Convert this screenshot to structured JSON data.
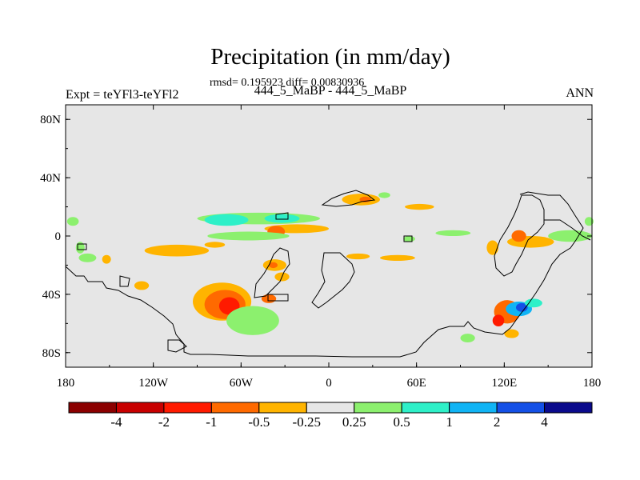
{
  "chart_data": {
    "type": "heatmap",
    "title": "Precipitation (in mm/day)",
    "stats": "rmsd= 0.195923 diff= 0.00830936",
    "subtitle": "444_5_MaBP - 444_5_MaBP",
    "left_string": "Expt = teYFl3-teYFl2",
    "right_string": "ANN",
    "xlim": [
      -180,
      180
    ],
    "ylim": [
      -90,
      90
    ],
    "x_ticks": [
      {
        "value": -180,
        "label": "180"
      },
      {
        "value": -120,
        "label": "120W"
      },
      {
        "value": -60,
        "label": "60W"
      },
      {
        "value": 0,
        "label": "0"
      },
      {
        "value": 60,
        "label": "60E"
      },
      {
        "value": 120,
        "label": "120E"
      },
      {
        "value": 180,
        "label": "180"
      }
    ],
    "y_ticks": [
      {
        "value": 80,
        "label": "80N"
      },
      {
        "value": 40,
        "label": "40N"
      },
      {
        "value": 0,
        "label": "0"
      },
      {
        "value": -40,
        "label": "40S"
      },
      {
        "value": -80,
        "label": "80S"
      }
    ],
    "colorbar": {
      "colors": [
        "#8b0000",
        "#c80000",
        "#ff1a00",
        "#ff6a00",
        "#ffb400",
        "#e6e6e6",
        "#8cf06e",
        "#2ef0c8",
        "#10b4f5",
        "#1450e6",
        "#0a0a8c"
      ],
      "labels": [
        "-4",
        "-2",
        "-1",
        "-0.5",
        "-0.25",
        "0.25",
        "0.5",
        "1",
        "2",
        "4"
      ]
    },
    "anomaly_regions": [
      {
        "lon": -48,
        "lat": 12,
        "rx": 42,
        "ry": 4,
        "level": 6
      },
      {
        "lon": -70,
        "lat": 11,
        "rx": 15,
        "ry": 4,
        "level": 7
      },
      {
        "lon": -32,
        "lat": 12,
        "rx": 12,
        "ry": 3,
        "level": 7
      },
      {
        "lon": -22,
        "lat": 5,
        "rx": 22,
        "ry": 3,
        "level": 4
      },
      {
        "lon": -36,
        "lat": 3,
        "rx": 6,
        "ry": 4,
        "level": 3
      },
      {
        "lon": -55,
        "lat": 0,
        "rx": 28,
        "ry": 3,
        "level": 6
      },
      {
        "lon": -104,
        "lat": -10,
        "rx": 22,
        "ry": 4,
        "level": 4
      },
      {
        "lon": -78,
        "lat": -6,
        "rx": 7,
        "ry": 2,
        "level": 4
      },
      {
        "lon": -37,
        "lat": -20,
        "rx": 8,
        "ry": 4,
        "level": 4
      },
      {
        "lon": -38,
        "lat": -20,
        "rx": 3,
        "ry": 2,
        "level": 3
      },
      {
        "lon": -32,
        "lat": -28,
        "rx": 5,
        "ry": 3,
        "level": 4
      },
      {
        "lon": -73,
        "lat": -45,
        "rx": 20,
        "ry": 13,
        "level": 4
      },
      {
        "lon": -71,
        "lat": -47,
        "rx": 14,
        "ry": 10,
        "level": 3
      },
      {
        "lon": -68,
        "lat": -48,
        "rx": 7,
        "ry": 6,
        "level": 2
      },
      {
        "lon": -52,
        "lat": -58,
        "rx": 18,
        "ry": 10,
        "level": 6
      },
      {
        "lon": -41,
        "lat": -43,
        "rx": 5,
        "ry": 3,
        "level": 3
      },
      {
        "lon": -128,
        "lat": -34,
        "rx": 5,
        "ry": 3,
        "level": 4
      },
      {
        "lon": -152,
        "lat": -16,
        "rx": 3,
        "ry": 3,
        "level": 4
      },
      {
        "lon": 22,
        "lat": 25,
        "rx": 13,
        "ry": 4,
        "level": 4
      },
      {
        "lon": 25,
        "lat": 25,
        "rx": 4,
        "ry": 2,
        "level": 3
      },
      {
        "lon": 62,
        "lat": 20,
        "rx": 10,
        "ry": 2,
        "level": 4
      },
      {
        "lon": 47,
        "lat": -15,
        "rx": 12,
        "ry": 2,
        "level": 4
      },
      {
        "lon": 20,
        "lat": -14,
        "rx": 8,
        "ry": 2,
        "level": 4
      },
      {
        "lon": 38,
        "lat": 28,
        "rx": 4,
        "ry": 2,
        "level": 6
      },
      {
        "lon": 55,
        "lat": -2,
        "rx": 4,
        "ry": 2,
        "level": 6
      },
      {
        "lon": 85,
        "lat": 2,
        "rx": 12,
        "ry": 2,
        "level": 6
      },
      {
        "lon": 138,
        "lat": -4,
        "rx": 16,
        "ry": 4,
        "level": 4
      },
      {
        "lon": 130,
        "lat": 0,
        "rx": 5,
        "ry": 4,
        "level": 3
      },
      {
        "lon": 112,
        "lat": -8,
        "rx": 4,
        "ry": 5,
        "level": 4
      },
      {
        "lon": 122,
        "lat": -52,
        "rx": 9,
        "ry": 8,
        "level": 3
      },
      {
        "lon": 116,
        "lat": -58,
        "rx": 4,
        "ry": 4,
        "level": 2
      },
      {
        "lon": 130,
        "lat": -50,
        "rx": 9,
        "ry": 5,
        "level": 8
      },
      {
        "lon": 132,
        "lat": -49,
        "rx": 4,
        "ry": 3,
        "level": 9
      },
      {
        "lon": 140,
        "lat": -46,
        "rx": 6,
        "ry": 3,
        "level": 7
      },
      {
        "lon": 125,
        "lat": -67,
        "rx": 5,
        "ry": 3,
        "level": 4
      },
      {
        "lon": 95,
        "lat": -70,
        "rx": 5,
        "ry": 3,
        "level": 6
      },
      {
        "lon": 165,
        "lat": 0,
        "rx": 15,
        "ry": 4,
        "level": 6
      },
      {
        "lon": -175,
        "lat": 10,
        "rx": 4,
        "ry": 3,
        "level": 6
      },
      {
        "lon": 178,
        "lat": 10,
        "rx": 3,
        "ry": 3,
        "level": 6
      },
      {
        "lon": -165,
        "lat": -15,
        "rx": 6,
        "ry": 3,
        "level": 6
      },
      {
        "lon": -170,
        "lat": -8,
        "rx": 3,
        "ry": 4,
        "level": 6
      }
    ]
  }
}
